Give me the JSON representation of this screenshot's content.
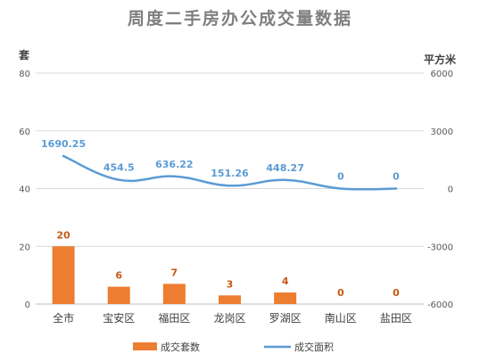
{
  "chart_data": {
    "type": "bar+line",
    "title": "周度二手房办公成交量数据",
    "categories": [
      "全市",
      "宝安区",
      "福田区",
      "龙岗区",
      "罗湖区",
      "南山区",
      "盐田区"
    ],
    "series": [
      {
        "name": "成交套数",
        "type": "bar",
        "axis": "left",
        "values": [
          20,
          6,
          7,
          3,
          4,
          0,
          0
        ],
        "labels": [
          "20",
          "6",
          "7",
          "3",
          "4",
          "0",
          "0"
        ],
        "color": "#ED7D31"
      },
      {
        "name": "成交面积",
        "type": "line",
        "axis": "right",
        "values": [
          1690.25,
          454.5,
          636.22,
          151.26,
          448.27,
          0,
          0
        ],
        "labels": [
          "1690.25",
          "454.5",
          "636.22",
          "151.26",
          "448.27",
          "0",
          "0"
        ],
        "color": "#5B9BD5"
      }
    ],
    "y_left": {
      "label": "套",
      "ylim": [
        0,
        80
      ],
      "ticks": [
        0,
        20,
        40,
        60,
        80
      ],
      "tick_labels": [
        "0",
        "20",
        "40",
        "60",
        "80"
      ]
    },
    "y_right": {
      "label": "平方米",
      "ylim": [
        -6000,
        6000
      ],
      "ticks": [
        -6000,
        -3000,
        0,
        3000,
        6000
      ],
      "tick_labels": [
        "-6000",
        "-3000",
        "0",
        "3000",
        "6000"
      ]
    },
    "grid": true,
    "legend_position": "bottom",
    "title_color": "#7F7F7F",
    "bar_label_color": "#C55A11",
    "line_label_color": "#5B9BD5",
    "axis_text_color": "#595959"
  }
}
